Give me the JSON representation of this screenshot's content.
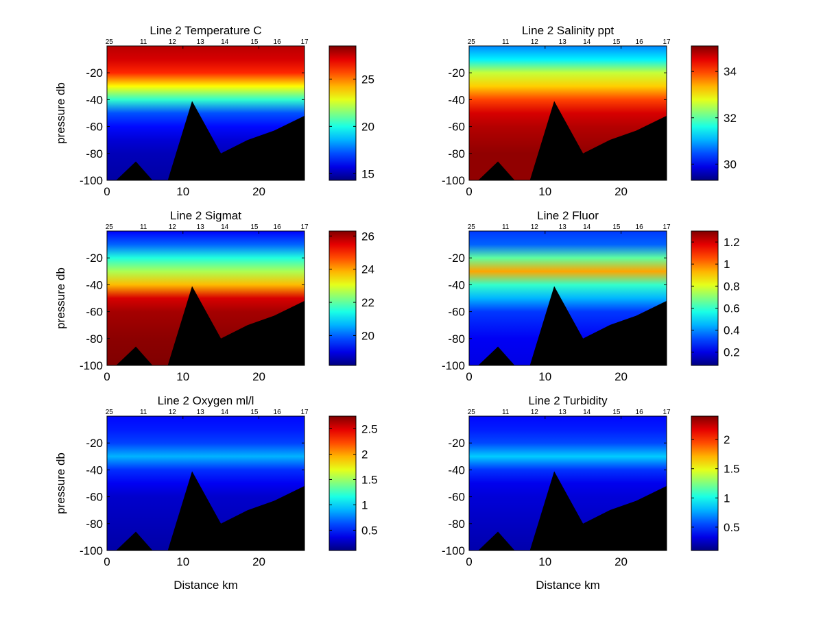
{
  "chart_data": [
    {
      "type": "heatmap",
      "title": "Line 2 Temperature C",
      "xlabel": "",
      "ylabel": "pressure db",
      "xlim": [
        0,
        26
      ],
      "ylim": [
        -100,
        0
      ],
      "xticks": [
        0,
        10,
        20
      ],
      "yticks": [
        -20,
        -40,
        -60,
        -80,
        -100
      ],
      "stations": [
        {
          "label": "25",
          "x": 0.3
        },
        {
          "label": "11",
          "x": 4.8
        },
        {
          "label": "12",
          "x": 8.6
        },
        {
          "label": "13",
          "x": 12.3
        },
        {
          "label": "14",
          "x": 15.5
        },
        {
          "label": "15",
          "x": 19.4
        },
        {
          "label": "16",
          "x": 22.4
        },
        {
          "label": "17",
          "x": 26
        }
      ],
      "colorbar": {
        "min": 14.3,
        "max": 28.5,
        "ticks": [
          15,
          20,
          25
        ]
      },
      "profile": [
        [
          0,
          27.7
        ],
        [
          10,
          27.3
        ],
        [
          20,
          26.2
        ],
        [
          30,
          23.2
        ],
        [
          40,
          20.3
        ],
        [
          50,
          17.2
        ],
        [
          60,
          16.2
        ],
        [
          70,
          15.5
        ],
        [
          80,
          15.1
        ],
        [
          100,
          14.8
        ]
      ],
      "bottom_topography": [
        [
          0,
          -100
        ],
        [
          1.2,
          -100
        ],
        [
          3.8,
          -86
        ],
        [
          6,
          -100
        ],
        [
          8,
          -100
        ],
        [
          11.2,
          -41
        ],
        [
          15,
          -80
        ],
        [
          18.5,
          -70
        ],
        [
          22,
          -63
        ],
        [
          26,
          -52
        ]
      ]
    },
    {
      "type": "heatmap",
      "title": "Line 2 Salinity ppt",
      "xlabel": "",
      "ylabel": "",
      "xlim": [
        0,
        26
      ],
      "ylim": [
        -100,
        0
      ],
      "xticks": [
        0,
        10,
        20
      ],
      "yticks": [
        -20,
        -40,
        -60,
        -80,
        -100
      ],
      "stations": [
        {
          "label": "25",
          "x": 0.3
        },
        {
          "label": "11",
          "x": 4.8
        },
        {
          "label": "12",
          "x": 8.6
        },
        {
          "label": "13",
          "x": 12.3
        },
        {
          "label": "14",
          "x": 15.5
        },
        {
          "label": "15",
          "x": 19.4
        },
        {
          "label": "16",
          "x": 22.4
        },
        {
          "label": "17",
          "x": 26
        }
      ],
      "colorbar": {
        "min": 29.3,
        "max": 35.1,
        "ticks": [
          30,
          32,
          34
        ]
      },
      "profile": [
        [
          0,
          30.8
        ],
        [
          10,
          31.4
        ],
        [
          20,
          32.6
        ],
        [
          30,
          33.2
        ],
        [
          40,
          34.0
        ],
        [
          50,
          34.6
        ],
        [
          60,
          34.8
        ],
        [
          80,
          35.0
        ],
        [
          100,
          35.0
        ]
      ],
      "bottom_topography": [
        [
          0,
          -100
        ],
        [
          1.2,
          -100
        ],
        [
          3.8,
          -86
        ],
        [
          6,
          -100
        ],
        [
          8,
          -100
        ],
        [
          11.2,
          -41
        ],
        [
          15,
          -80
        ],
        [
          18.5,
          -70
        ],
        [
          22,
          -63
        ],
        [
          26,
          -52
        ]
      ]
    },
    {
      "type": "heatmap",
      "title": "Line 2 Sigmat",
      "xlabel": "",
      "ylabel": "pressure db",
      "xlim": [
        0,
        26
      ],
      "ylim": [
        -100,
        0
      ],
      "xticks": [
        0,
        10,
        20
      ],
      "yticks": [
        -20,
        -40,
        -60,
        -80,
        -100
      ],
      "stations": [
        {
          "label": "25",
          "x": 0.3
        },
        {
          "label": "11",
          "x": 4.8
        },
        {
          "label": "12",
          "x": 8.6
        },
        {
          "label": "13",
          "x": 12.3
        },
        {
          "label": "14",
          "x": 15.5
        },
        {
          "label": "15",
          "x": 19.4
        },
        {
          "label": "16",
          "x": 22.4
        },
        {
          "label": "17",
          "x": 26
        }
      ],
      "colorbar": {
        "min": 18.2,
        "max": 26.3,
        "ticks": [
          20,
          22,
          24,
          26
        ]
      },
      "profile": [
        [
          0,
          19.2
        ],
        [
          10,
          20.0
        ],
        [
          20,
          21.5
        ],
        [
          30,
          22.6
        ],
        [
          40,
          23.8
        ],
        [
          50,
          25.6
        ],
        [
          60,
          26.0
        ],
        [
          80,
          26.2
        ],
        [
          100,
          26.3
        ]
      ],
      "bottom_topography": [
        [
          0,
          -100
        ],
        [
          1.2,
          -100
        ],
        [
          3.8,
          -86
        ],
        [
          6,
          -100
        ],
        [
          8,
          -100
        ],
        [
          11.2,
          -41
        ],
        [
          15,
          -80
        ],
        [
          18.5,
          -70
        ],
        [
          22,
          -63
        ],
        [
          26,
          -52
        ]
      ]
    },
    {
      "type": "heatmap",
      "title": "Line 2 Fluor",
      "xlabel": "",
      "ylabel": "",
      "xlim": [
        0,
        26
      ],
      "ylim": [
        -100,
        0
      ],
      "xticks": [
        0,
        10,
        20
      ],
      "yticks": [
        -20,
        -40,
        -60,
        -80,
        -100
      ],
      "stations": [
        {
          "label": "25",
          "x": 0.3
        },
        {
          "label": "11",
          "x": 4.8
        },
        {
          "label": "12",
          "x": 8.6
        },
        {
          "label": "13",
          "x": 12.3
        },
        {
          "label": "14",
          "x": 15.5
        },
        {
          "label": "15",
          "x": 19.4
        },
        {
          "label": "16",
          "x": 22.4
        },
        {
          "label": "17",
          "x": 26
        }
      ],
      "colorbar": {
        "min": 0.08,
        "max": 1.3,
        "ticks": [
          0.2,
          0.4,
          0.6,
          0.8,
          1,
          1.2
        ]
      },
      "profile": [
        [
          0,
          0.3
        ],
        [
          10,
          0.35
        ],
        [
          20,
          0.65
        ],
        [
          30,
          0.95
        ],
        [
          40,
          0.6
        ],
        [
          50,
          0.45
        ],
        [
          60,
          0.3
        ],
        [
          80,
          0.22
        ],
        [
          100,
          0.2
        ]
      ],
      "bottom_topography": [
        [
          0,
          -100
        ],
        [
          1.2,
          -100
        ],
        [
          3.8,
          -86
        ],
        [
          6,
          -100
        ],
        [
          8,
          -100
        ],
        [
          11.2,
          -41
        ],
        [
          15,
          -80
        ],
        [
          18.5,
          -70
        ],
        [
          22,
          -63
        ],
        [
          26,
          -52
        ]
      ]
    },
    {
      "type": "heatmap",
      "title": "Line 2 Oxygen ml/l",
      "xlabel": "Distance km",
      "ylabel": "pressure db",
      "xlim": [
        0,
        26
      ],
      "ylim": [
        -100,
        0
      ],
      "xticks": [
        0,
        10,
        20
      ],
      "yticks": [
        -20,
        -40,
        -60,
        -80,
        -100
      ],
      "stations": [
        {
          "label": "25",
          "x": 0.3
        },
        {
          "label": "11",
          "x": 4.8
        },
        {
          "label": "12",
          "x": 8.6
        },
        {
          "label": "13",
          "x": 12.3
        },
        {
          "label": "14",
          "x": 15.5
        },
        {
          "label": "15",
          "x": 19.4
        },
        {
          "label": "16",
          "x": 22.4
        },
        {
          "label": "17",
          "x": 26
        }
      ],
      "colorbar": {
        "min": 0.1,
        "max": 2.75,
        "ticks": [
          0.5,
          1,
          1.5,
          2,
          2.5
        ]
      },
      "profile": [
        [
          0,
          0.45
        ],
        [
          10,
          0.5
        ],
        [
          20,
          0.6
        ],
        [
          30,
          0.9
        ],
        [
          40,
          0.55
        ],
        [
          50,
          0.4
        ],
        [
          60,
          0.3
        ],
        [
          80,
          0.25
        ],
        [
          100,
          0.2
        ]
      ],
      "bottom_topography": [
        [
          0,
          -100
        ],
        [
          1.2,
          -100
        ],
        [
          3.8,
          -86
        ],
        [
          6,
          -100
        ],
        [
          8,
          -100
        ],
        [
          11.2,
          -41
        ],
        [
          15,
          -80
        ],
        [
          18.5,
          -70
        ],
        [
          22,
          -63
        ],
        [
          26,
          -52
        ]
      ]
    },
    {
      "type": "heatmap",
      "title": "Line 2 Turbidity",
      "xlabel": "Distance km",
      "ylabel": "",
      "xlim": [
        0,
        26
      ],
      "ylim": [
        -100,
        0
      ],
      "xticks": [
        0,
        10,
        20
      ],
      "yticks": [
        -20,
        -40,
        -60,
        -80,
        -100
      ],
      "stations": [
        {
          "label": "25",
          "x": 0.3
        },
        {
          "label": "11",
          "x": 4.8
        },
        {
          "label": "12",
          "x": 8.6
        },
        {
          "label": "13",
          "x": 12.3
        },
        {
          "label": "14",
          "x": 15.5
        },
        {
          "label": "15",
          "x": 19.4
        },
        {
          "label": "16",
          "x": 22.4
        },
        {
          "label": "17",
          "x": 26
        }
      ],
      "colorbar": {
        "min": 0.1,
        "max": 2.4,
        "ticks": [
          0.5,
          1,
          1.5,
          2
        ]
      },
      "profile": [
        [
          0,
          0.4
        ],
        [
          10,
          0.45
        ],
        [
          20,
          0.55
        ],
        [
          30,
          0.85
        ],
        [
          40,
          0.5
        ],
        [
          50,
          0.35
        ],
        [
          60,
          0.3
        ],
        [
          80,
          0.25
        ],
        [
          100,
          0.2
        ]
      ],
      "bottom_topography": [
        [
          0,
          -100
        ],
        [
          1.2,
          -100
        ],
        [
          3.8,
          -86
        ],
        [
          6,
          -100
        ],
        [
          8,
          -100
        ],
        [
          11.2,
          -41
        ],
        [
          15,
          -80
        ],
        [
          18.5,
          -70
        ],
        [
          22,
          -63
        ],
        [
          26,
          -52
        ]
      ]
    }
  ]
}
